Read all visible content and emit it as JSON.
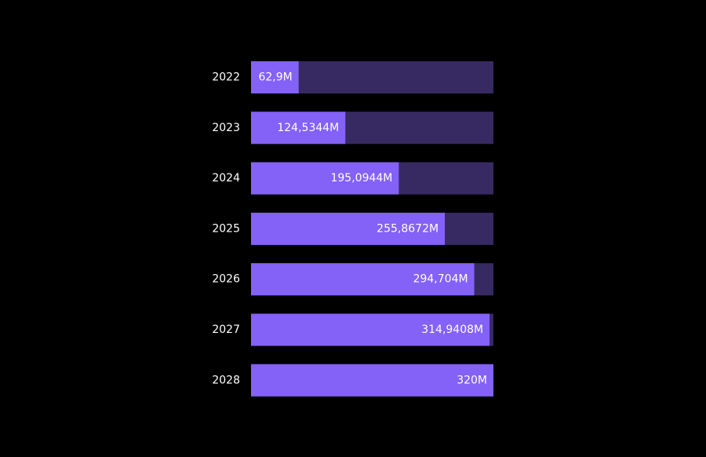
{
  "chart_data": {
    "type": "bar",
    "orientation": "horizontal",
    "categories": [
      "2022",
      "2023",
      "2024",
      "2025",
      "2026",
      "2027",
      "2028"
    ],
    "values": [
      62.9,
      124.5344,
      195.0944,
      255.8672,
      294.704,
      314.9408,
      320
    ],
    "value_labels": [
      "62,9M",
      "124,5344M",
      "195,0944M",
      "255,8672M",
      "294,704M",
      "314,9408M",
      "320M"
    ],
    "xlim": [
      0,
      320
    ],
    "unit": "M",
    "grid": false,
    "legend": "none",
    "colors": {
      "background": "#000000",
      "bar_fill": "#8461F7",
      "bar_track": "#372A63",
      "text": "#FFFFFF"
    }
  }
}
